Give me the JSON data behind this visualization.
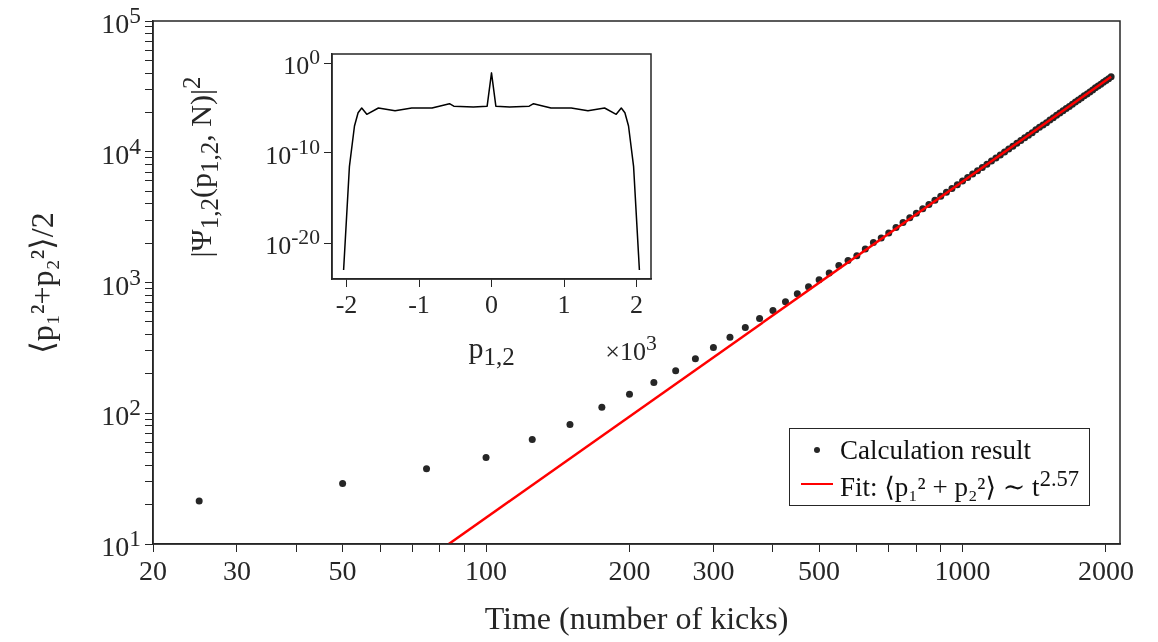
{
  "chart_data": [
    {
      "type": "scatter",
      "xlabel": "Time (number of kicks)",
      "ylabel": "⟨p₁²+p₂²⟩/2",
      "log": "xy",
      "grid": false,
      "legend": "bottom right",
      "x": [
        25,
        50,
        75,
        100,
        125,
        150,
        175,
        200,
        225,
        250,
        275,
        300,
        325,
        350,
        375,
        400,
        425,
        450,
        475,
        500,
        525,
        550,
        575,
        600,
        625,
        650,
        675,
        700,
        725,
        750,
        775,
        800,
        825,
        850,
        875,
        900,
        925,
        950,
        975,
        1000,
        1025,
        1050,
        1075,
        1100,
        1125,
        1150,
        1175,
        1200,
        1225,
        1250,
        1275,
        1300,
        1325,
        1350,
        1375,
        1400,
        1425,
        1450,
        1475,
        1500,
        1525,
        1550,
        1575,
        1600,
        1625,
        1650,
        1675,
        1700,
        1725,
        1750,
        1775,
        1800,
        1825,
        1850,
        1875,
        1900,
        1925,
        1950,
        1975,
        2000,
        2025,
        2050
      ],
      "xlim": [
        20,
        2140
      ],
      "xticks": [
        20,
        30,
        {
          "value": 40,
          "label": null
        },
        50,
        {
          "value": 60,
          "label": null
        },
        {
          "value": 70,
          "label": null
        },
        {
          "value": 80,
          "label": null
        },
        {
          "value": 90,
          "label": null
        },
        100,
        200,
        300,
        {
          "value": 400,
          "label": null
        },
        500,
        {
          "value": 600,
          "label": null
        },
        {
          "value": 700,
          "label": null
        },
        {
          "value": 800,
          "label": null
        },
        {
          "value": 900,
          "label": null
        },
        1000,
        2000
      ],
      "ylim": [
        10,
        100000
      ],
      "yticks": [
        {
          "value": 10,
          "label": "10$^{1}$"
        },
        {
          "value": 20,
          "label": null
        },
        {
          "value": 30,
          "label": null
        },
        {
          "value": 40,
          "label": null
        },
        {
          "value": 50,
          "label": null
        },
        {
          "value": 60,
          "label": null
        },
        {
          "value": 70,
          "label": null
        },
        {
          "value": 80,
          "label": null
        },
        {
          "value": 90,
          "label": null
        },
        {
          "value": 100,
          "label": "10$^{2}$"
        },
        {
          "value": 200,
          "label": null
        },
        {
          "value": 300,
          "label": null
        },
        {
          "value": 400,
          "label": null
        },
        {
          "value": 500,
          "label": null
        },
        {
          "value": 600,
          "label": null
        },
        {
          "value": 700,
          "label": null
        },
        {
          "value": 800,
          "label": null
        },
        {
          "value": 900,
          "label": null
        },
        {
          "value": 1000,
          "label": "10$^{3}$"
        },
        {
          "value": 2000,
          "label": null
        },
        {
          "value": 3000,
          "label": null
        },
        {
          "value": 4000,
          "label": null
        },
        {
          "value": 5000,
          "label": null
        },
        {
          "value": 6000,
          "label": null
        },
        {
          "value": 7000,
          "label": null
        },
        {
          "value": 8000,
          "label": null
        },
        {
          "value": 9000,
          "label": null
        },
        {
          "value": 10000,
          "label": "10$^{4}$"
        },
        {
          "value": 20000,
          "label": null
        },
        {
          "value": 30000,
          "label": null
        },
        {
          "value": 40000,
          "label": null
        },
        {
          "value": 50000,
          "label": null
        },
        {
          "value": 60000,
          "label": null
        },
        {
          "value": 70000,
          "label": null
        },
        {
          "value": 80000,
          "label": null
        },
        {
          "value": 90000,
          "label": null
        },
        {
          "value": 100000,
          "label": "10$^{5}$"
        }
      ],
      "series": [
        {
          "name": "Calculation result",
          "marker": "circle",
          "color": "#262626",
          "values": [
            21.3,
            29.0,
            37.7,
            45.8,
            63,
            82,
            111,
            140,
            172,
            211,
            261,
            318,
            382,
            453,
            531,
            611,
            713,
            821,
            929,
            1050,
            1180,
            1350,
            1470,
            1600,
            1800,
            2020,
            2190,
            2390,
            2640,
            2880,
            3130,
            3390,
            3660,
            3950,
            4250,
            4570,
            4900,
            5240,
            5600,
            5970,
            6350,
            6750,
            7160,
            7590,
            8030,
            8490,
            8960,
            9460,
            9950,
            10500,
            11000,
            11600,
            12200,
            12800,
            13400,
            14000,
            14700,
            15400,
            16000,
            16700,
            17500,
            18200,
            19000,
            19800,
            20600,
            21400,
            22200,
            23100,
            24000,
            24900,
            25800,
            26800,
            27700,
            28700,
            29700,
            30800,
            31800,
            32900,
            34000,
            35100,
            36200,
            37400
          ]
        },
        {
          "name": "Fit: ⟨p₁² + p₂²⟩ ∼ t$^{2.57}$",
          "type": "line",
          "marker": "none",
          "color": "#ff0000",
          "x": [
            83.5,
            2050
          ],
          "values": [
            10,
            37400
          ]
        }
      ]
    },
    {
      "type": "line",
      "xlabel": "p$_{1,2}$",
      "ylabel": "|Ψ$_{1,2}$(p$_{1,2}$, N)|$^{2}$",
      "log": "y",
      "grid": false,
      "marker": "none",
      "annotations": [
        "×10$^{3}$"
      ],
      "x": [
        -2.04,
        -1.96,
        -1.89,
        -1.84,
        -1.79,
        -1.72,
        -1.56,
        -1.33,
        -1.1,
        -0.82,
        -0.58,
        -0.52,
        -0.25,
        -0.06,
        0,
        0.06,
        0.25,
        0.52,
        0.58,
        0.82,
        1.1,
        1.33,
        1.56,
        1.72,
        1.79,
        1.84,
        1.89,
        1.96,
        2.04
      ],
      "xlim": [
        -2.2,
        2.2
      ],
      "xticks": [
        -2,
        -1,
        0,
        1,
        2
      ],
      "ylim": [
        1e-24,
        10
      ],
      "yticks": [
        {
          "value": 1,
          "label": "10$^{0}$"
        },
        {
          "value": 1e-10,
          "label": "10$^{-10}$"
        },
        {
          "value": 1e-20,
          "label": "10$^{-20}$"
        }
      ],
      "series": [
        {
          "color": "#000000",
          "values": [
            1e-23,
            3e-12,
            1e-07,
            3e-06,
            1e-05,
            2e-06,
            1e-05,
            5e-06,
            1e-05,
            1e-05,
            3e-05,
            1.6e-05,
            1.3e-05,
            1.6e-05,
            0.08,
            1.6e-05,
            1.3e-05,
            1.6e-05,
            3e-05,
            1e-05,
            1e-05,
            5e-06,
            1e-05,
            2e-06,
            1e-05,
            3e-06,
            1e-07,
            3e-12,
            1e-23
          ]
        }
      ]
    }
  ]
}
